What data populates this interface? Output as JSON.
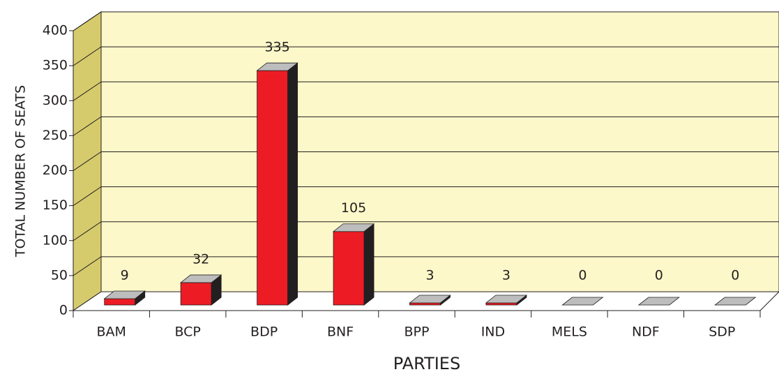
{
  "chart_data": {
    "type": "bar3d",
    "ylabel": "TOTAL NUMBER OF SEATS",
    "xlabel": "PARTIES",
    "categories": [
      "BAM",
      "BCP",
      "BDP",
      "BNF",
      "BPP",
      "IND",
      "MELS",
      "NDF",
      "SDP"
    ],
    "values": [
      9,
      32,
      335,
      105,
      3,
      3,
      0,
      0,
      0
    ],
    "color": "#ed1c24",
    "ylim": [
      0,
      400
    ],
    "yticks": [
      0,
      50,
      100,
      150,
      200,
      250,
      300,
      350,
      400
    ],
    "grid": true
  }
}
